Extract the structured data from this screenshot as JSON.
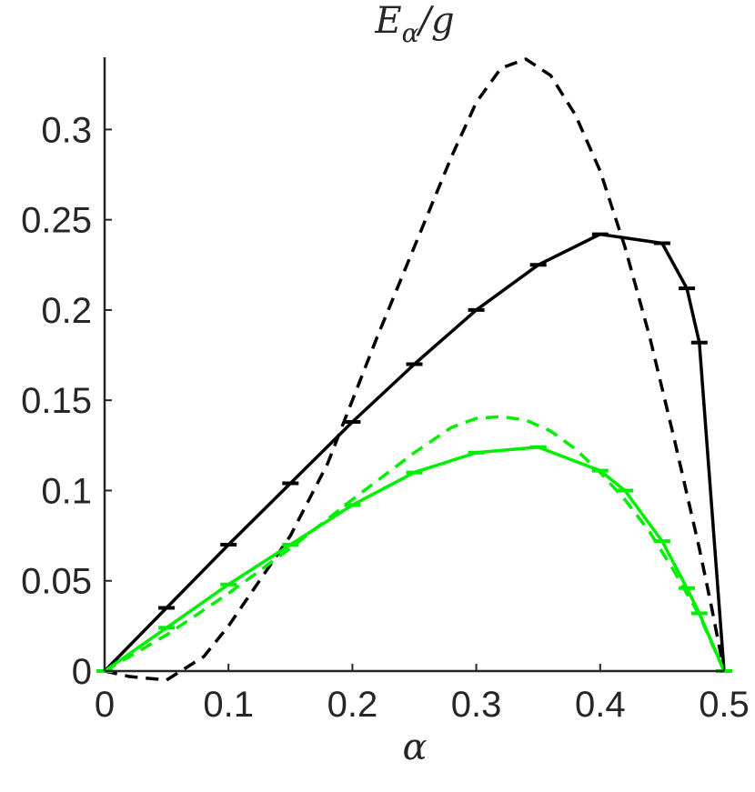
{
  "chart_data": {
    "type": "line",
    "title": "E_α/g",
    "title_parts": {
      "main": "E",
      "sub": "α",
      "rest": "/g"
    },
    "xlabel": "α",
    "ylabel": "",
    "xlim": [
      0,
      0.5
    ],
    "ylim": [
      0,
      0.34
    ],
    "xticks": [
      0,
      0.1,
      0.2,
      0.3,
      0.4,
      0.5
    ],
    "xtick_labels": [
      "0",
      "0.1",
      "0.2",
      "0.3",
      "0.4",
      "0.5"
    ],
    "yticks": [
      0,
      0.05,
      0.1,
      0.15,
      0.2,
      0.25,
      0.3
    ],
    "ytick_labels": [
      "0",
      "0.05",
      "0.1",
      "0.15",
      "0.2",
      "0.25",
      "0.3"
    ],
    "grid": false,
    "series": [
      {
        "color": "#000000",
        "style": "solid",
        "error_bars": true,
        "points": [
          [
            0,
            0
          ],
          [
            0.05,
            0.035
          ],
          [
            0.1,
            0.07
          ],
          [
            0.15,
            0.104
          ],
          [
            0.2,
            0.138
          ],
          [
            0.25,
            0.17
          ],
          [
            0.3,
            0.2
          ],
          [
            0.35,
            0.225
          ],
          [
            0.4,
            0.242
          ],
          [
            0.45,
            0.237
          ],
          [
            0.47,
            0.212
          ],
          [
            0.48,
            0.182
          ],
          [
            0.5,
            0
          ]
        ]
      },
      {
        "color": "#000000",
        "style": "dashed",
        "error_bars": false,
        "points": [
          [
            0,
            0
          ],
          [
            0.02,
            -0.003
          ],
          [
            0.05,
            -0.005
          ],
          [
            0.08,
            0.008
          ],
          [
            0.1,
            0.025
          ],
          [
            0.12,
            0.045
          ],
          [
            0.15,
            0.075
          ],
          [
            0.18,
            0.115
          ],
          [
            0.2,
            0.15
          ],
          [
            0.22,
            0.185
          ],
          [
            0.25,
            0.235
          ],
          [
            0.28,
            0.285
          ],
          [
            0.3,
            0.315
          ],
          [
            0.32,
            0.334
          ],
          [
            0.34,
            0.339
          ],
          [
            0.36,
            0.33
          ],
          [
            0.38,
            0.308
          ],
          [
            0.4,
            0.277
          ],
          [
            0.42,
            0.235
          ],
          [
            0.44,
            0.185
          ],
          [
            0.46,
            0.128
          ],
          [
            0.48,
            0.068
          ],
          [
            0.49,
            0.035
          ],
          [
            0.5,
            0
          ]
        ]
      },
      {
        "color": "#00ee00",
        "style": "solid",
        "error_bars": true,
        "points": [
          [
            0,
            0
          ],
          [
            0.05,
            0.024
          ],
          [
            0.1,
            0.048
          ],
          [
            0.15,
            0.07
          ],
          [
            0.2,
            0.092
          ],
          [
            0.25,
            0.11
          ],
          [
            0.3,
            0.121
          ],
          [
            0.35,
            0.124
          ],
          [
            0.4,
            0.111
          ],
          [
            0.42,
            0.1
          ],
          [
            0.45,
            0.072
          ],
          [
            0.47,
            0.046
          ],
          [
            0.48,
            0.032
          ],
          [
            0.5,
            0
          ]
        ]
      },
      {
        "color": "#00ee00",
        "style": "dashed",
        "error_bars": false,
        "points": [
          [
            0,
            0
          ],
          [
            0.05,
            0.02
          ],
          [
            0.1,
            0.043
          ],
          [
            0.15,
            0.068
          ],
          [
            0.2,
            0.095
          ],
          [
            0.25,
            0.121
          ],
          [
            0.28,
            0.135
          ],
          [
            0.3,
            0.14
          ],
          [
            0.32,
            0.141
          ],
          [
            0.34,
            0.139
          ],
          [
            0.36,
            0.133
          ],
          [
            0.38,
            0.123
          ],
          [
            0.4,
            0.11
          ],
          [
            0.42,
            0.095
          ],
          [
            0.44,
            0.077
          ],
          [
            0.46,
            0.055
          ],
          [
            0.48,
            0.031
          ],
          [
            0.5,
            0
          ]
        ]
      }
    ]
  }
}
